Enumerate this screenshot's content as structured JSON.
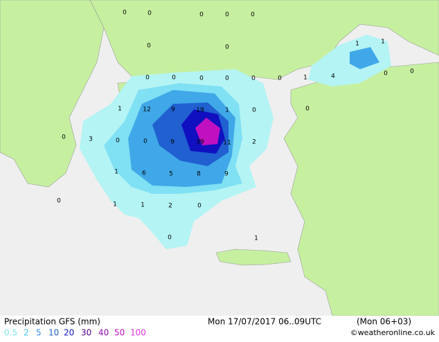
{
  "title": "Precipitation GFS (mm)",
  "valid_time": "Mon 17/07/2017 06..09UTC",
  "run": "(Mon 06+03)",
  "credit": "©weatheronline.co.uk",
  "legend": [
    {
      "label": 0.5,
      "color": "#80e8f0"
    },
    {
      "label": 2,
      "color": "#40c8f0"
    },
    {
      "label": 5,
      "color": "#3090e0"
    },
    {
      "label": 10,
      "color": "#2060d0"
    },
    {
      "label": 20,
      "color": "#1010c0"
    },
    {
      "label": 30,
      "color": "#500090"
    },
    {
      "label": 40,
      "color": "#9010b0"
    },
    {
      "label": 50,
      "color": "#c010c0"
    },
    {
      "label": 100,
      "color": "#e030e0"
    }
  ],
  "labels": [
    0,
    0,
    0,
    0,
    0,
    0,
    0,
    1,
    1,
    0,
    0,
    0,
    0,
    0,
    0,
    1,
    4,
    0,
    0,
    1,
    12,
    9,
    19,
    1,
    0,
    0,
    0,
    3,
    0,
    0,
    9,
    39,
    11,
    2,
    1,
    6,
    5,
    8,
    9,
    0,
    1,
    1,
    2,
    0,
    0,
    1
  ]
}
